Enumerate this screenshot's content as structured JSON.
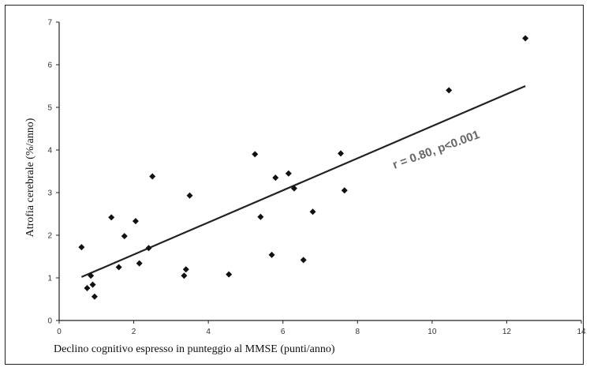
{
  "chart_data": {
    "type": "scatter",
    "title": "",
    "xlabel": "Declino cognitivo espresso in punteggio al MMSE (punti/anno)",
    "ylabel": "Atrofia cerebrale (%/anno)",
    "xlim": [
      0,
      14
    ],
    "ylim": [
      0,
      7
    ],
    "xticks": [
      "0",
      "2",
      "4",
      "6",
      "8",
      "10",
      "12",
      "14"
    ],
    "yticks": [
      "0",
      "1",
      "2",
      "3",
      "4",
      "5",
      "6",
      "7"
    ],
    "grid": false,
    "annotation": "r = 0.80, p<0.001",
    "colors": {
      "points": "#111111",
      "line": "#222222",
      "annotation": "#666666"
    },
    "points": [
      {
        "x": 0.6,
        "y": 1.72
      },
      {
        "x": 0.75,
        "y": 0.76
      },
      {
        "x": 0.85,
        "y": 1.05
      },
      {
        "x": 0.9,
        "y": 0.84
      },
      {
        "x": 0.95,
        "y": 0.56
      },
      {
        "x": 1.4,
        "y": 2.42
      },
      {
        "x": 1.6,
        "y": 1.25
      },
      {
        "x": 1.75,
        "y": 1.98
      },
      {
        "x": 2.05,
        "y": 2.33
      },
      {
        "x": 2.15,
        "y": 1.34
      },
      {
        "x": 2.4,
        "y": 1.7
      },
      {
        "x": 2.5,
        "y": 3.38
      },
      {
        "x": 3.35,
        "y": 1.05
      },
      {
        "x": 3.4,
        "y": 1.2
      },
      {
        "x": 3.5,
        "y": 2.93
      },
      {
        "x": 4.55,
        "y": 1.08
      },
      {
        "x": 5.25,
        "y": 3.9
      },
      {
        "x": 5.4,
        "y": 2.43
      },
      {
        "x": 5.7,
        "y": 1.54
      },
      {
        "x": 5.8,
        "y": 3.35
      },
      {
        "x": 6.15,
        "y": 3.45
      },
      {
        "x": 6.3,
        "y": 3.1
      },
      {
        "x": 6.55,
        "y": 1.42
      },
      {
        "x": 6.8,
        "y": 2.55
      },
      {
        "x": 7.55,
        "y": 3.92
      },
      {
        "x": 7.65,
        "y": 3.05
      },
      {
        "x": 10.45,
        "y": 5.4
      },
      {
        "x": 12.5,
        "y": 6.62
      }
    ],
    "regression_line": [
      {
        "x": 0.6,
        "y": 1.02
      },
      {
        "x": 12.5,
        "y": 5.5
      }
    ]
  }
}
